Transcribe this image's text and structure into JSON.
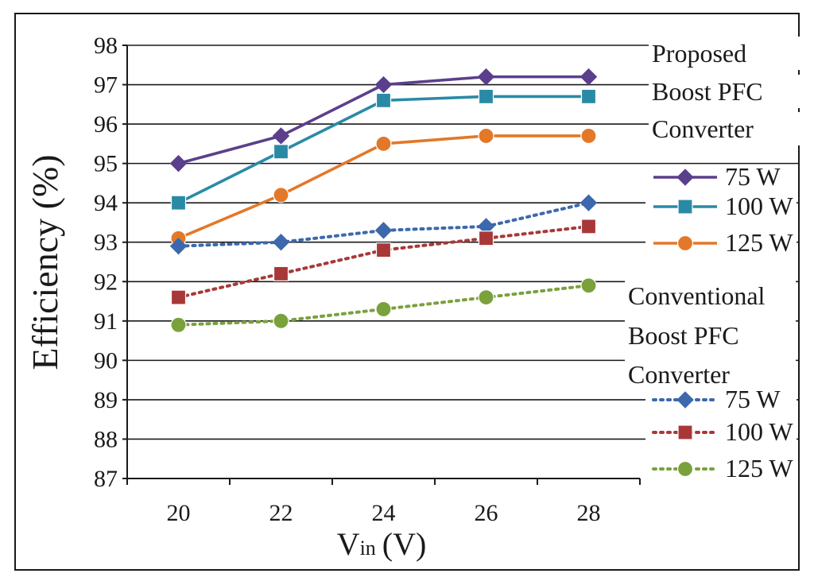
{
  "chart_data": {
    "type": "line",
    "x": [
      20,
      22,
      24,
      26,
      28
    ],
    "xlabel": "Vin (V)",
    "xlabel_main": "V",
    "xlabel_sub": "in",
    "xlabel_unit": "(V)",
    "ylabel": "Efficiency (%)",
    "ylim": [
      87,
      98
    ],
    "yticks": [
      87,
      88,
      89,
      90,
      91,
      92,
      93,
      94,
      95,
      96,
      97,
      98
    ],
    "grid": "horizontal",
    "legend_position": "right",
    "legend_groups": [
      {
        "title_lines": [
          "Proposed",
          "Boost PFC",
          "Converter"
        ],
        "series_indices": [
          0,
          1,
          2
        ]
      },
      {
        "title_lines": [
          "Conventional",
          "Boost PFC",
          "Converter"
        ],
        "series_indices": [
          3,
          4,
          5
        ]
      }
    ],
    "series": [
      {
        "name": "75 W",
        "group": "Proposed Boost PFC Converter",
        "values": [
          95.0,
          95.7,
          97.0,
          97.2,
          97.2
        ],
        "color": "#5b3f8c",
        "marker": "diamond",
        "dash": "solid"
      },
      {
        "name": "100 W",
        "group": "Proposed Boost PFC Converter",
        "values": [
          94.0,
          95.3,
          96.6,
          96.7,
          96.7
        ],
        "color": "#2a8aa6",
        "marker": "square",
        "dash": "solid"
      },
      {
        "name": "125 W",
        "group": "Proposed Boost PFC Converter",
        "values": [
          93.1,
          94.2,
          95.5,
          95.7,
          95.7
        ],
        "color": "#e37828",
        "marker": "circle",
        "dash": "solid"
      },
      {
        "name": "75 W",
        "group": "Conventional Boost PFC Converter",
        "values": [
          92.9,
          93.0,
          93.3,
          93.4,
          94.0
        ],
        "color": "#3c68ad",
        "marker": "diamond",
        "dash": "dotted"
      },
      {
        "name": "100 W",
        "group": "Conventional Boost PFC Converter",
        "values": [
          91.6,
          92.2,
          92.8,
          93.1,
          93.4
        ],
        "color": "#a83838",
        "marker": "square",
        "dash": "dotted"
      },
      {
        "name": "125 W",
        "group": "Conventional Boost PFC Converter",
        "values": [
          90.9,
          91.0,
          91.3,
          91.6,
          91.9
        ],
        "color": "#7aa13c",
        "marker": "circle",
        "dash": "dotted"
      }
    ]
  }
}
